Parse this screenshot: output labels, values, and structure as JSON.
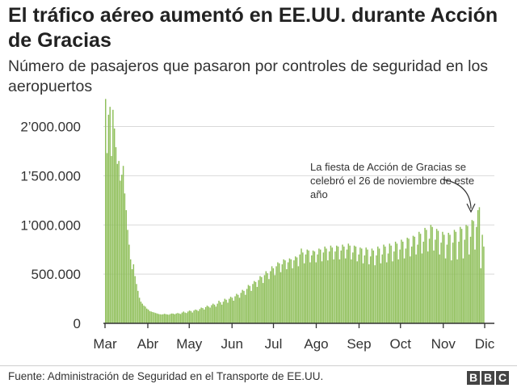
{
  "title": "El tráfico aéreo aumentó en EE.UU. durante Acción de Gracias",
  "subtitle": "Número de pasajeros que pasaron por controles de seguridad en los aeropuertos",
  "source": "Fuente: Administración de Seguridad en el Transporte de EE.UU.",
  "logo": [
    "B",
    "B",
    "C"
  ],
  "annotation": "La fiesta de Acción de Gracias se celebró el 26 de noviembre de este año",
  "colors": {
    "bar": "#8fbf5a",
    "bar_dark": "#6fa83c",
    "grid": "#d9d9d9",
    "axis": "#333333"
  },
  "chart_data": {
    "type": "bar",
    "title": "El tráfico aéreo aumentó en EE.UU. durante Acción de Gracias",
    "ylim": [
      0,
      2300000
    ],
    "y_ticks": [
      0,
      500000,
      1000000,
      1500000,
      2000000
    ],
    "y_tick_labels": [
      "0",
      "500.000",
      "1’000.000",
      "1’500.000",
      "2’000.000"
    ],
    "x_tick_labels": [
      "Mar",
      "Abr",
      "May",
      "Jun",
      "Jul",
      "Ago",
      "Sep",
      "Oct",
      "Nov",
      "Dic"
    ],
    "grid": true,
    "x_start": "2020-03-01",
    "weekly_pattern_note": "daily values, 1 March to 30 November 2020",
    "series": [
      {
        "values": [
          2280000,
          1730000,
          2120000,
          2200000,
          1700000,
          2170000,
          1980000,
          1790000,
          1620000,
          1650000,
          1450000,
          1510000,
          1600000,
          1320000,
          1150000,
          950000,
          800000,
          650000,
          550000,
          600000,
          480000,
          400000,
          330000,
          260000,
          220000,
          200000,
          180000,
          170000,
          150000,
          140000,
          125000,
          120000,
          115000,
          110000,
          105000,
          100000,
          95000,
          92000,
          90000,
          92000,
          97000,
          93000,
          90000,
          88000,
          95000,
          100000,
          98000,
          92000,
          100000,
          105000,
          100000,
          95000,
          110000,
          120000,
          110000,
          105000,
          120000,
          130000,
          125000,
          110000,
          130000,
          140000,
          135000,
          125000,
          145000,
          160000,
          155000,
          140000,
          165000,
          180000,
          170000,
          160000,
          185000,
          200000,
          190000,
          170000,
          200000,
          230000,
          215000,
          190000,
          220000,
          250000,
          240000,
          210000,
          250000,
          270000,
          260000,
          230000,
          275000,
          300000,
          290000,
          260000,
          310000,
          340000,
          330000,
          290000,
          350000,
          390000,
          380000,
          330000,
          400000,
          430000,
          420000,
          370000,
          440000,
          480000,
          470000,
          410000,
          490000,
          530000,
          510000,
          450000,
          530000,
          580000,
          560000,
          490000,
          580000,
          620000,
          610000,
          520000,
          600000,
          650000,
          640000,
          550000,
          620000,
          660000,
          650000,
          560000,
          640000,
          680000,
          670000,
          580000,
          700000,
          760000,
          720000,
          610000,
          700000,
          750000,
          740000,
          620000,
          690000,
          740000,
          730000,
          620000,
          700000,
          760000,
          750000,
          630000,
          720000,
          780000,
          760000,
          640000,
          730000,
          790000,
          770000,
          650000,
          730000,
          790000,
          780000,
          650000,
          740000,
          800000,
          780000,
          660000,
          750000,
          810000,
          790000,
          650000,
          720000,
          790000,
          780000,
          630000,
          700000,
          770000,
          760000,
          610000,
          690000,
          770000,
          750000,
          600000,
          680000,
          760000,
          740000,
          590000,
          690000,
          780000,
          760000,
          610000,
          700000,
          800000,
          780000,
          620000,
          710000,
          810000,
          790000,
          630000,
          730000,
          830000,
          810000,
          650000,
          750000,
          850000,
          830000,
          660000,
          760000,
          870000,
          860000,
          680000,
          780000,
          890000,
          880000,
          700000,
          800000,
          930000,
          910000,
          710000,
          830000,
          970000,
          950000,
          730000,
          860000,
          1000000,
          980000,
          740000,
          850000,
          960000,
          940000,
          700000,
          820000,
          930000,
          900000,
          660000,
          800000,
          920000,
          900000,
          640000,
          820000,
          950000,
          930000,
          650000,
          830000,
          980000,
          960000,
          660000,
          850000,
          1000000,
          990000,
          700000,
          880000,
          1050000,
          1040000,
          750000,
          980000,
          1150000,
          1180000,
          560000,
          900000,
          780000
        ]
      }
    ]
  }
}
